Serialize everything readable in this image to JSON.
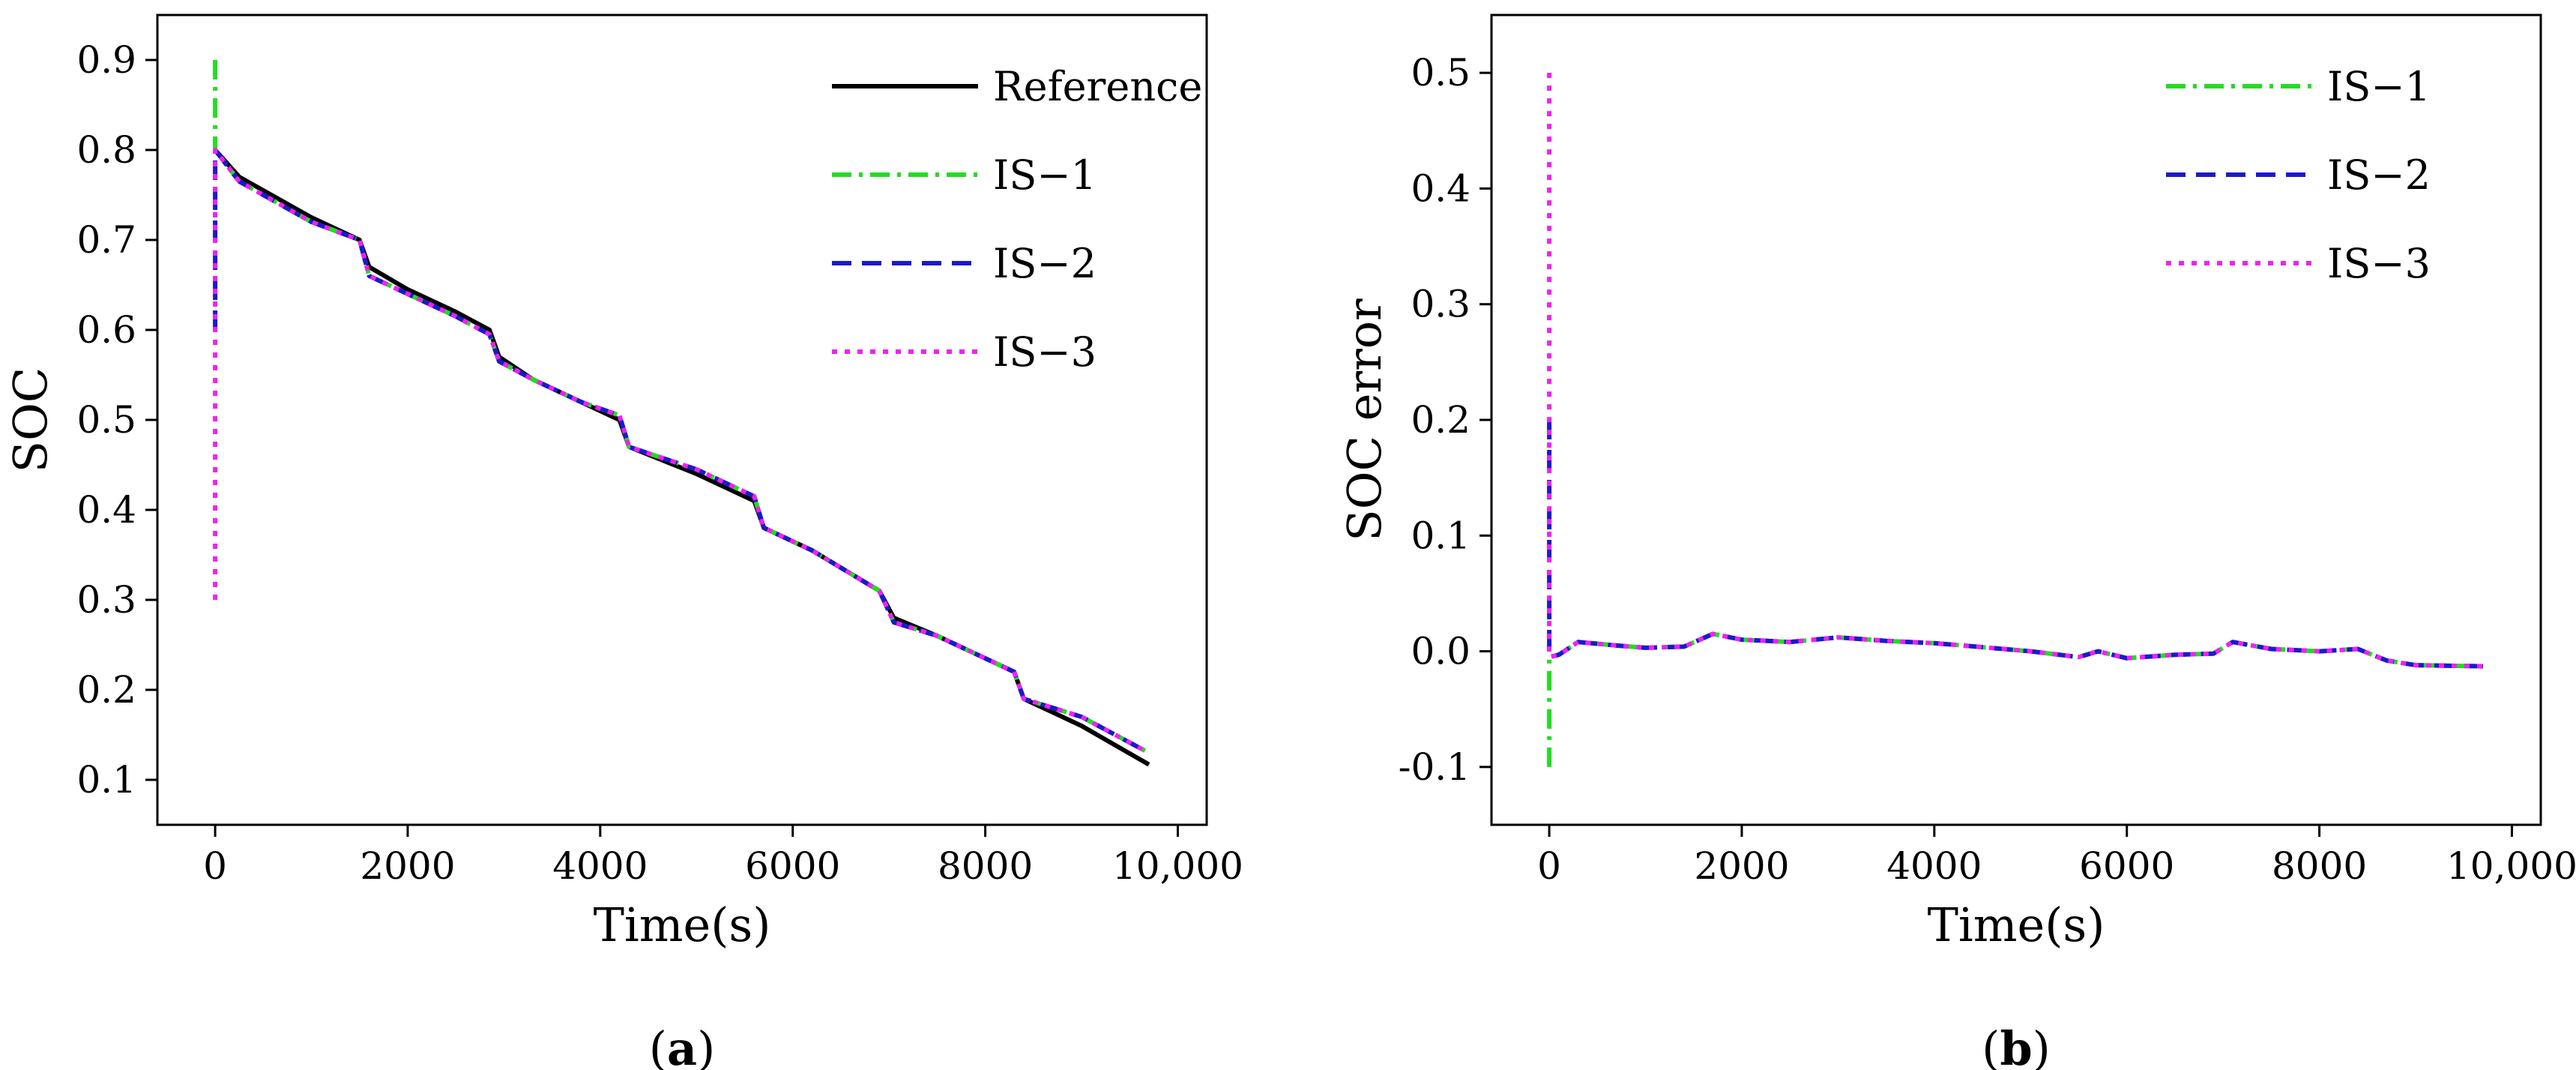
{
  "chart_data": [
    {
      "type": "line",
      "caption": "a",
      "xlabel": "Time(s)",
      "ylabel": "SOC",
      "xlim": [
        -600,
        10300
      ],
      "ylim": [
        0.05,
        0.95
      ],
      "xticks": [
        0,
        2000,
        4000,
        6000,
        8000,
        10000
      ],
      "xtick_labels": [
        "0",
        "2000",
        "4000",
        "6000",
        "8000",
        "10,000"
      ],
      "yticks": [
        0.1,
        0.2,
        0.3,
        0.4,
        0.5,
        0.6,
        0.7,
        0.8,
        0.9
      ],
      "ytick_labels": [
        "0.1",
        "0.2",
        "0.3",
        "0.4",
        "0.5",
        "0.6",
        "0.7",
        "0.8",
        "0.9"
      ],
      "legend_position": "top-right",
      "series": [
        {
          "name": "Reference",
          "color": "#000000",
          "dash": "solid",
          "x": [
            0,
            250,
            500,
            1000,
            1500,
            1600,
            2000,
            2500,
            2850,
            2950,
            3300,
            3800,
            4200,
            4300,
            5000,
            5600,
            5700,
            6200,
            6900,
            7050,
            7500,
            8300,
            8400,
            9000,
            9700
          ],
          "y": [
            0.8,
            0.77,
            0.755,
            0.725,
            0.7,
            0.67,
            0.645,
            0.62,
            0.6,
            0.57,
            0.545,
            0.52,
            0.5,
            0.47,
            0.44,
            0.41,
            0.38,
            0.355,
            0.31,
            0.28,
            0.26,
            0.22,
            0.19,
            0.16,
            0.117
          ]
        },
        {
          "name": "IS−1",
          "color": "#22dd22",
          "dash": "dashdot",
          "x": [
            0,
            0,
            0,
            250,
            500,
            1000,
            1500,
            1600,
            2000,
            2500,
            2850,
            2950,
            3300,
            3800,
            4200,
            4300,
            5000,
            5600,
            5700,
            6200,
            6900,
            7050,
            7500,
            8300,
            8400,
            9000,
            9700
          ],
          "y": [
            0.9,
            0.8,
            0.8,
            0.765,
            0.75,
            0.72,
            0.7,
            0.66,
            0.64,
            0.615,
            0.595,
            0.565,
            0.545,
            0.52,
            0.505,
            0.47,
            0.445,
            0.415,
            0.38,
            0.355,
            0.31,
            0.275,
            0.26,
            0.22,
            0.19,
            0.17,
            0.13
          ]
        },
        {
          "name": "IS−2",
          "color": "#1a1acc",
          "dash": "dash",
          "x": [
            0,
            0,
            0,
            250,
            500,
            1000,
            1500,
            1600,
            2000,
            2500,
            2850,
            2950,
            3300,
            3800,
            4200,
            4300,
            5000,
            5600,
            5700,
            6200,
            6900,
            7050,
            7500,
            8300,
            8400,
            9000,
            9700
          ],
          "y": [
            0.6,
            0.8,
            0.8,
            0.765,
            0.75,
            0.72,
            0.7,
            0.66,
            0.64,
            0.615,
            0.595,
            0.565,
            0.545,
            0.52,
            0.505,
            0.47,
            0.445,
            0.415,
            0.38,
            0.355,
            0.31,
            0.275,
            0.26,
            0.22,
            0.19,
            0.17,
            0.13
          ]
        },
        {
          "name": "IS−3",
          "color": "#ee22ee",
          "dash": "dot",
          "x": [
            0,
            0,
            0,
            250,
            500,
            1000,
            1500,
            1600,
            2000,
            2500,
            2850,
            2950,
            3300,
            3800,
            4200,
            4300,
            5000,
            5600,
            5700,
            6200,
            6900,
            7050,
            7500,
            8300,
            8400,
            9000,
            9700
          ],
          "y": [
            0.3,
            0.8,
            0.8,
            0.765,
            0.75,
            0.72,
            0.7,
            0.66,
            0.64,
            0.615,
            0.595,
            0.565,
            0.545,
            0.52,
            0.505,
            0.47,
            0.445,
            0.415,
            0.38,
            0.355,
            0.31,
            0.275,
            0.26,
            0.22,
            0.19,
            0.17,
            0.13
          ]
        }
      ]
    },
    {
      "type": "line",
      "caption": "b",
      "xlabel": "Time(s)",
      "ylabel": "SOC error",
      "xlim": [
        -600,
        10300
      ],
      "ylim": [
        -0.15,
        0.55
      ],
      "xticks": [
        0,
        2000,
        4000,
        6000,
        8000,
        10000
      ],
      "xtick_labels": [
        "0",
        "2000",
        "4000",
        "6000",
        "8000",
        "10,000"
      ],
      "yticks": [
        -0.1,
        0.0,
        0.1,
        0.2,
        0.3,
        0.4,
        0.5
      ],
      "ytick_labels": [
        "-0.1",
        "0.0",
        "0.1",
        "0.2",
        "0.3",
        "0.4",
        "0.5"
      ],
      "legend_position": "top-right",
      "series": [
        {
          "name": "IS−1",
          "color": "#22dd22",
          "dash": "dashdot",
          "x": [
            0,
            0,
            100,
            300,
            700,
            1000,
            1400,
            1700,
            2000,
            2500,
            3000,
            3500,
            4000,
            4300,
            5000,
            5500,
            5700,
            6000,
            6500,
            6900,
            7100,
            7500,
            8000,
            8400,
            8700,
            9000,
            9700
          ],
          "y": [
            -0.1,
            -0.005,
            -0.003,
            0.008,
            0.005,
            0.003,
            0.004,
            0.015,
            0.01,
            0.008,
            0.012,
            0.009,
            0.007,
            0.005,
            0.0,
            -0.005,
            0.0,
            -0.006,
            -0.003,
            -0.002,
            0.008,
            0.002,
            0.0,
            0.002,
            -0.008,
            -0.012,
            -0.013
          ]
        },
        {
          "name": "IS−2",
          "color": "#1a1acc",
          "dash": "dash",
          "x": [
            0,
            0,
            100,
            300,
            700,
            1000,
            1400,
            1700,
            2000,
            2500,
            3000,
            3500,
            4000,
            4300,
            5000,
            5500,
            5700,
            6000,
            6500,
            6900,
            7100,
            7500,
            8000,
            8400,
            8700,
            9000,
            9700
          ],
          "y": [
            0.2,
            -0.005,
            -0.003,
            0.008,
            0.005,
            0.003,
            0.004,
            0.015,
            0.01,
            0.008,
            0.012,
            0.009,
            0.007,
            0.005,
            0.0,
            -0.005,
            0.0,
            -0.006,
            -0.003,
            -0.002,
            0.008,
            0.002,
            0.0,
            0.002,
            -0.008,
            -0.012,
            -0.013
          ]
        },
        {
          "name": "IS−3",
          "color": "#ee22ee",
          "dash": "dot",
          "x": [
            0,
            0,
            100,
            300,
            700,
            1000,
            1400,
            1700,
            2000,
            2500,
            3000,
            3500,
            4000,
            4300,
            5000,
            5500,
            5700,
            6000,
            6500,
            6900,
            7100,
            7500,
            8000,
            8400,
            8700,
            9000,
            9700
          ],
          "y": [
            0.5,
            -0.005,
            -0.003,
            0.008,
            0.005,
            0.003,
            0.004,
            0.015,
            0.01,
            0.008,
            0.012,
            0.009,
            0.007,
            0.005,
            0.0,
            -0.005,
            0.0,
            -0.006,
            -0.003,
            -0.002,
            0.008,
            0.002,
            0.0,
            0.002,
            -0.008,
            -0.012,
            -0.013
          ]
        }
      ]
    }
  ]
}
